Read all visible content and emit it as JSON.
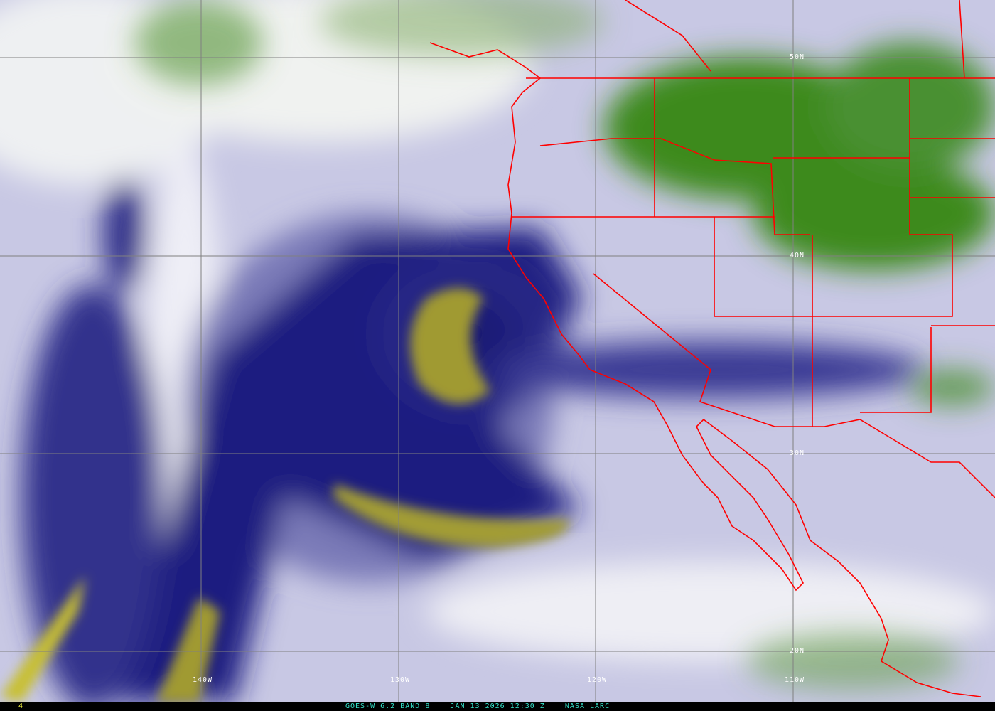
{
  "image": {
    "description_type": "satellite water vapor imagery",
    "colors": {
      "dry": "#1a1a7a",
      "very_dry": "#a09a30",
      "moist": "#e8e8f4",
      "cold_clouds": "#3c8a1e",
      "borders": "#ff0000",
      "grid": "#808080",
      "caption": "#33e0c8",
      "frame": "#ffff40"
    }
  },
  "grid_labels": {
    "lon": [
      "140W",
      "130W",
      "120W",
      "110W"
    ],
    "lat": [
      "50N",
      "40N",
      "30N",
      "20N"
    ]
  },
  "status_bar": {
    "frame_number": "4",
    "caption": "GOES-W 6.2 BAND 8    JAN 13 2026 12:30 Z    NASA LARC"
  }
}
